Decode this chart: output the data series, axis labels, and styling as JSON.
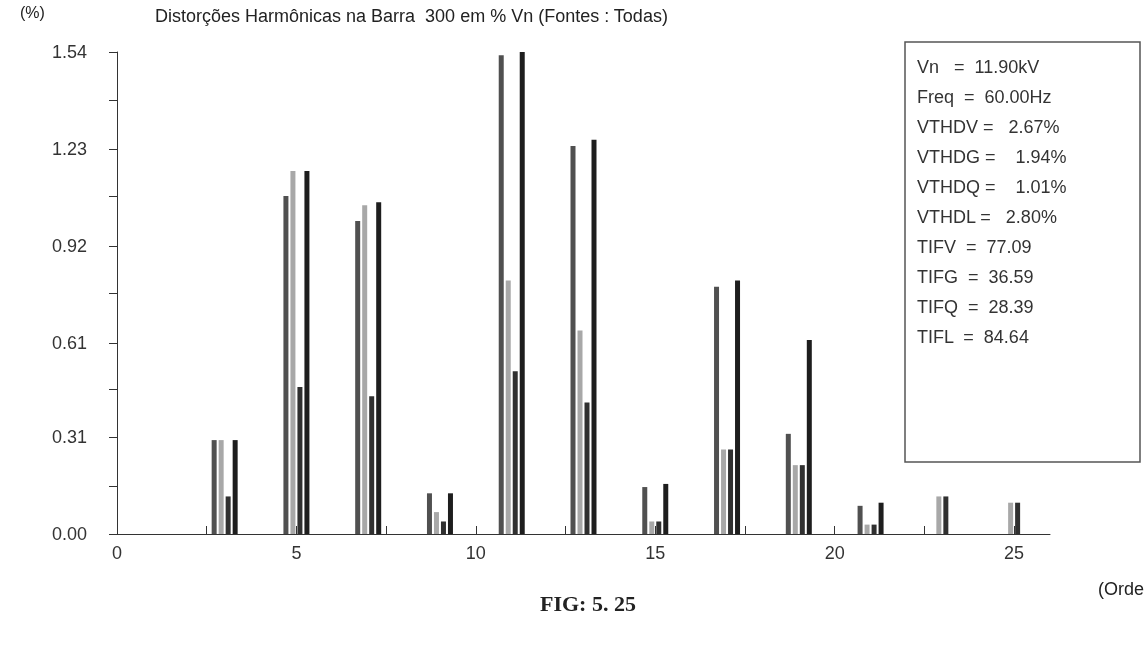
{
  "chart_data": {
    "type": "bar",
    "title": "Distorções Harmônicas na Barra  300 em % Vn (Fontes : Todas)",
    "ylabel": "(%)",
    "xlabel": "(Orde",
    "x": [
      3,
      5,
      7,
      9,
      11,
      13,
      15,
      17,
      19,
      21,
      23,
      25
    ],
    "series": [
      {
        "color": "#505050",
        "values": [
          0.3,
          1.08,
          1.0,
          0.13,
          1.53,
          1.24,
          0.15,
          0.79,
          0.32,
          0.09,
          null,
          null
        ]
      },
      {
        "color": "#a8a8a8",
        "values": [
          0.3,
          1.16,
          1.05,
          0.07,
          0.81,
          0.65,
          0.04,
          0.27,
          0.22,
          0.03,
          0.12,
          0.1
        ]
      },
      {
        "color": "#303030",
        "values": [
          0.12,
          0.47,
          0.44,
          0.04,
          0.52,
          0.42,
          0.04,
          0.27,
          0.22,
          0.03,
          0.12,
          0.1
        ]
      },
      {
        "color": "#1e1e1e",
        "values": [
          0.3,
          1.16,
          1.06,
          0.13,
          1.54,
          1.26,
          0.16,
          0.81,
          0.62,
          0.1,
          null,
          null
        ]
      }
    ],
    "xlim": [
      0,
      26
    ],
    "xticks": [
      0,
      {
        "value": 2.5,
        "label": null
      },
      5,
      {
        "value": 7.5,
        "label": null
      },
      10,
      {
        "value": 12.5,
        "label": null
      },
      15,
      {
        "value": 17.5,
        "label": null
      },
      20,
      {
        "value": 22.5,
        "label": null
      },
      25
    ],
    "ylim": [
      0,
      1.54
    ],
    "yticks": [
      {
        "value": 0,
        "label": "0.00"
      },
      {
        "value": 0.154,
        "label": null
      },
      0.31,
      {
        "value": 0.462,
        "label": null
      },
      0.61,
      {
        "value": 0.77,
        "label": null
      },
      0.92,
      {
        "value": 1.078,
        "label": null
      },
      1.23,
      {
        "value": 1.386,
        "label": null
      },
      1.54
    ],
    "grid": false,
    "annotations": [
      "FIG: 5. 25",
      "Vn   =  11.90kV",
      "Freq  =  60.00Hz",
      "VTHDV =   2.67%",
      "VTHDG =    1.94%",
      "VTHDQ =    1.01%",
      "VTHDL =   2.80%",
      "TIFV  =  77.09",
      "TIFG  =  36.59",
      "TIFQ  =  28.39",
      "TIFL  =  84.64"
    ]
  }
}
